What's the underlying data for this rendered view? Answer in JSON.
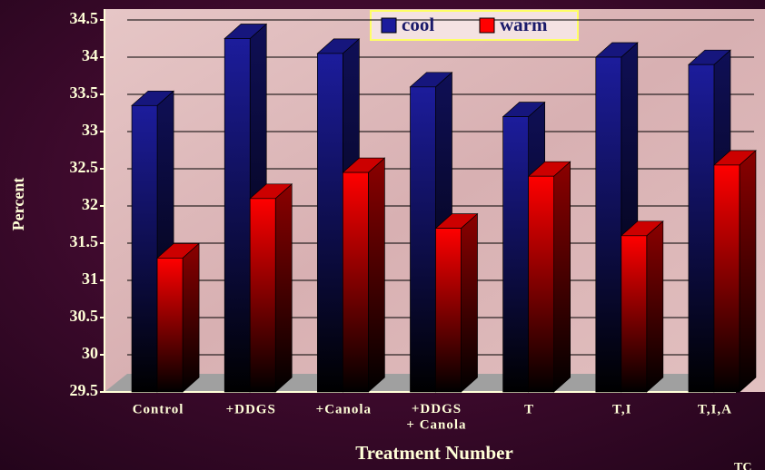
{
  "chart_data": {
    "type": "bar3d",
    "y_label": "Percent",
    "x_label": "Treatment Number",
    "footnote": "TC",
    "categories": [
      "Control",
      "+DDGS",
      "+Canola",
      "+DDGS\n+ Canola",
      "T",
      "T,I",
      "T,I,A"
    ],
    "series": [
      {
        "name": "cool",
        "color": "#1c1c9c",
        "values": [
          33.35,
          34.25,
          34.05,
          33.6,
          33.2,
          34.0,
          33.9
        ]
      },
      {
        "name": "warm",
        "color": "#ff0000",
        "values": [
          31.3,
          32.1,
          32.45,
          31.7,
          32.4,
          31.6,
          32.55
        ]
      }
    ],
    "ylim": [
      29.5,
      34.5
    ],
    "yticks": [
      29.5,
      30,
      30.5,
      31,
      31.5,
      32,
      32.5,
      33,
      33.5,
      34,
      34.5
    ],
    "grid": true
  }
}
